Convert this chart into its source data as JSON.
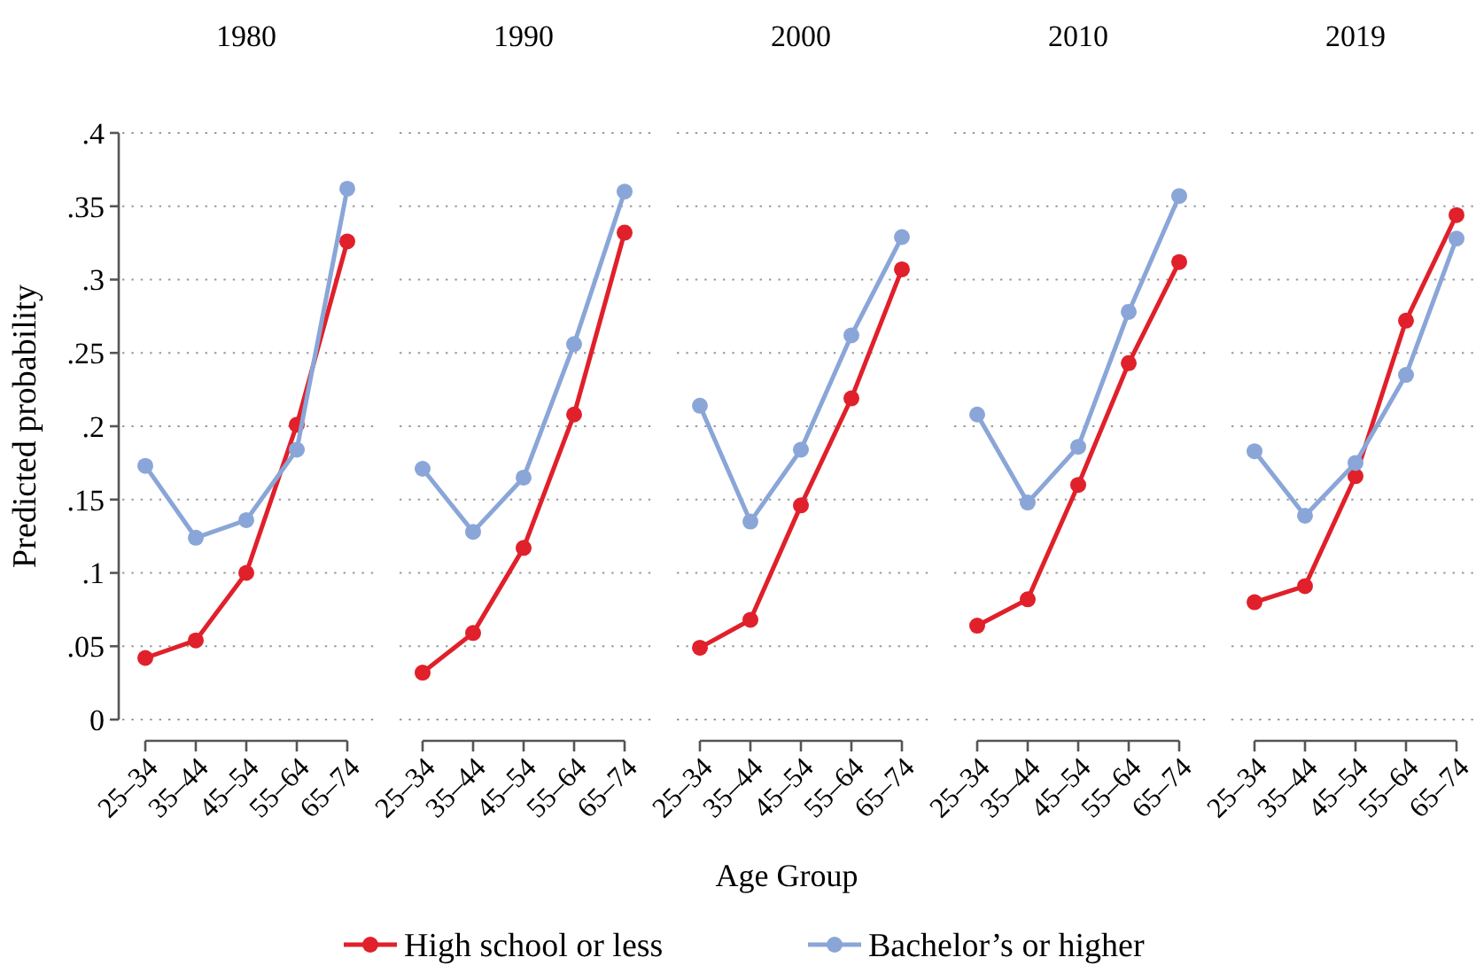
{
  "chart_data": [
    {
      "type": "line",
      "title": "1980",
      "ylabel": "Predicted probability",
      "categories": [
        "25–34",
        "35–44",
        "45–54",
        "55–64",
        "65–74"
      ],
      "ylim": [
        0,
        0.4
      ],
      "yticks": [
        0,
        {
          "value": 0.05,
          "label": ".05"
        },
        {
          "value": 0.1,
          "label": ".1"
        },
        {
          "value": 0.15,
          "label": ".15"
        },
        {
          "value": 0.2,
          "label": ".2"
        },
        {
          "value": 0.25,
          "label": ".25"
        },
        {
          "value": 0.3,
          "label": ".3"
        },
        {
          "value": 0.35,
          "label": ".35"
        },
        {
          "value": 0.4,
          "label": ".4"
        }
      ],
      "grid": "y",
      "marker": "circle",
      "series": [
        {
          "color": "#e0202a",
          "values": [
            0.042,
            0.054,
            0.1,
            0.201,
            0.326
          ]
        },
        {
          "color": "#8aa6d8",
          "values": [
            0.173,
            0.124,
            0.136,
            0.184,
            0.362
          ]
        }
      ]
    },
    {
      "type": "line",
      "title": "1990",
      "categories": [
        "25–34",
        "35–44",
        "45–54",
        "55–64",
        "65–74"
      ],
      "ylim": [
        0,
        0.4
      ],
      "tick_labels": "x",
      "grid": "y",
      "marker": "circle",
      "series": [
        {
          "color": "#e0202a",
          "values": [
            0.032,
            0.059,
            0.117,
            0.208,
            0.332
          ]
        },
        {
          "color": "#8aa6d8",
          "values": [
            0.171,
            0.128,
            0.165,
            0.256,
            0.36
          ]
        }
      ]
    },
    {
      "type": "line",
      "title": "2000",
      "xlabel": "Age Group",
      "categories": [
        "25–34",
        "35–44",
        "45–54",
        "55–64",
        "65–74"
      ],
      "ylim": [
        0,
        0.4
      ],
      "tick_labels": "x",
      "grid": "y",
      "marker": "circle",
      "legend": "bottom",
      "series": [
        {
          "name": "High school or less",
          "color": "#e0202a",
          "values": [
            0.049,
            0.068,
            0.146,
            0.219,
            0.307
          ]
        },
        {
          "name": "Bachelor’s or higher",
          "color": "#8aa6d8",
          "values": [
            0.214,
            0.135,
            0.184,
            0.262,
            0.329
          ]
        }
      ]
    },
    {
      "type": "line",
      "title": "2010",
      "categories": [
        "25–34",
        "35–44",
        "45–54",
        "55–64",
        "65–74"
      ],
      "ylim": [
        0,
        0.4
      ],
      "tick_labels": "x",
      "grid": "y",
      "marker": "circle",
      "series": [
        {
          "color": "#e0202a",
          "values": [
            0.064,
            0.082,
            0.16,
            0.243,
            0.312
          ]
        },
        {
          "color": "#8aa6d8",
          "values": [
            0.208,
            0.148,
            0.186,
            0.278,
            0.357
          ]
        }
      ]
    },
    {
      "type": "line",
      "title": "2019",
      "categories": [
        "25–34",
        "35–44",
        "45–54",
        "55–64",
        "65–74"
      ],
      "ylim": [
        0,
        0.4
      ],
      "tick_labels": "x",
      "grid": "y",
      "marker": "circle",
      "series": [
        {
          "color": "#e0202a",
          "values": [
            0.08,
            0.091,
            0.166,
            0.272,
            0.344
          ]
        },
        {
          "color": "#8aa6d8",
          "values": [
            0.183,
            0.139,
            0.175,
            0.235,
            0.328
          ]
        }
      ]
    }
  ]
}
